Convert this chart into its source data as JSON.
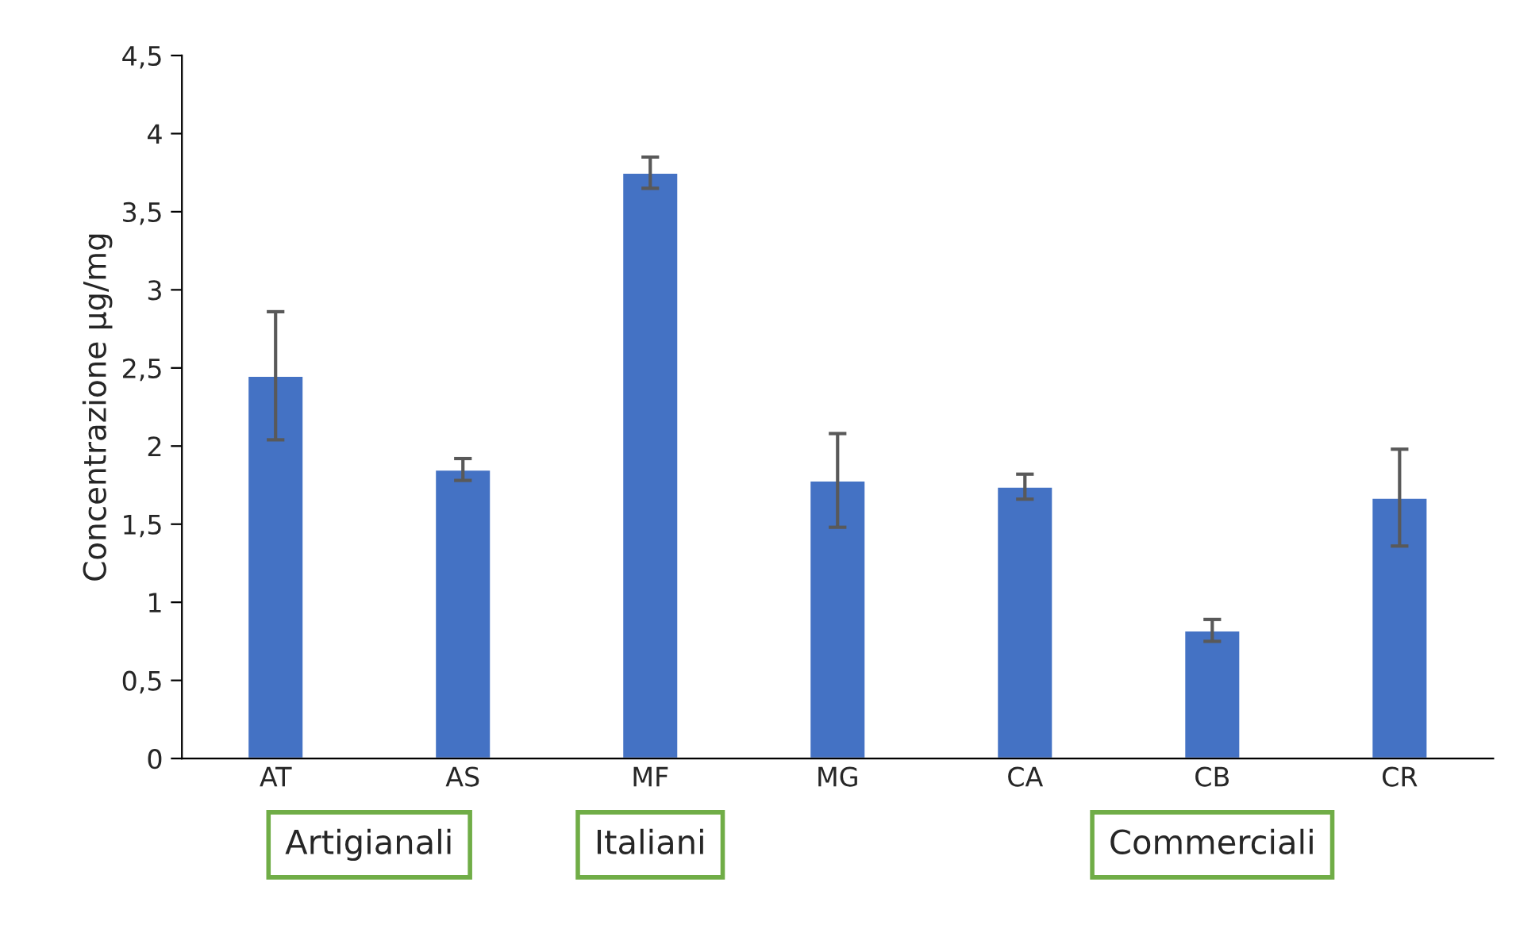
{
  "chart_data": {
    "type": "bar",
    "ylabel": "Concentrazione µg/mg",
    "categories": [
      "AT",
      "AS",
      "MF",
      "MG",
      "CA",
      "CB",
      "CR"
    ],
    "values": [
      2.45,
      1.85,
      3.75,
      1.78,
      1.74,
      0.82,
      1.67
    ],
    "errors": [
      0.41,
      0.07,
      0.1,
      0.3,
      0.08,
      0.07,
      0.31
    ],
    "color": "#4472c4",
    "ylim": [
      0,
      4.5
    ],
    "yticks": [
      0,
      {
        "value": 0.5,
        "label": "0,5"
      },
      1,
      {
        "value": 1.5,
        "label": "1,5"
      },
      2,
      {
        "value": 2.5,
        "label": "2,5"
      },
      3,
      {
        "value": 3.5,
        "label": "3,5"
      },
      4,
      {
        "value": 4.5,
        "label": "4,5"
      }
    ],
    "grid": false,
    "annotations": [
      "Artigianali",
      "Italiani",
      "Commerciali"
    ]
  }
}
